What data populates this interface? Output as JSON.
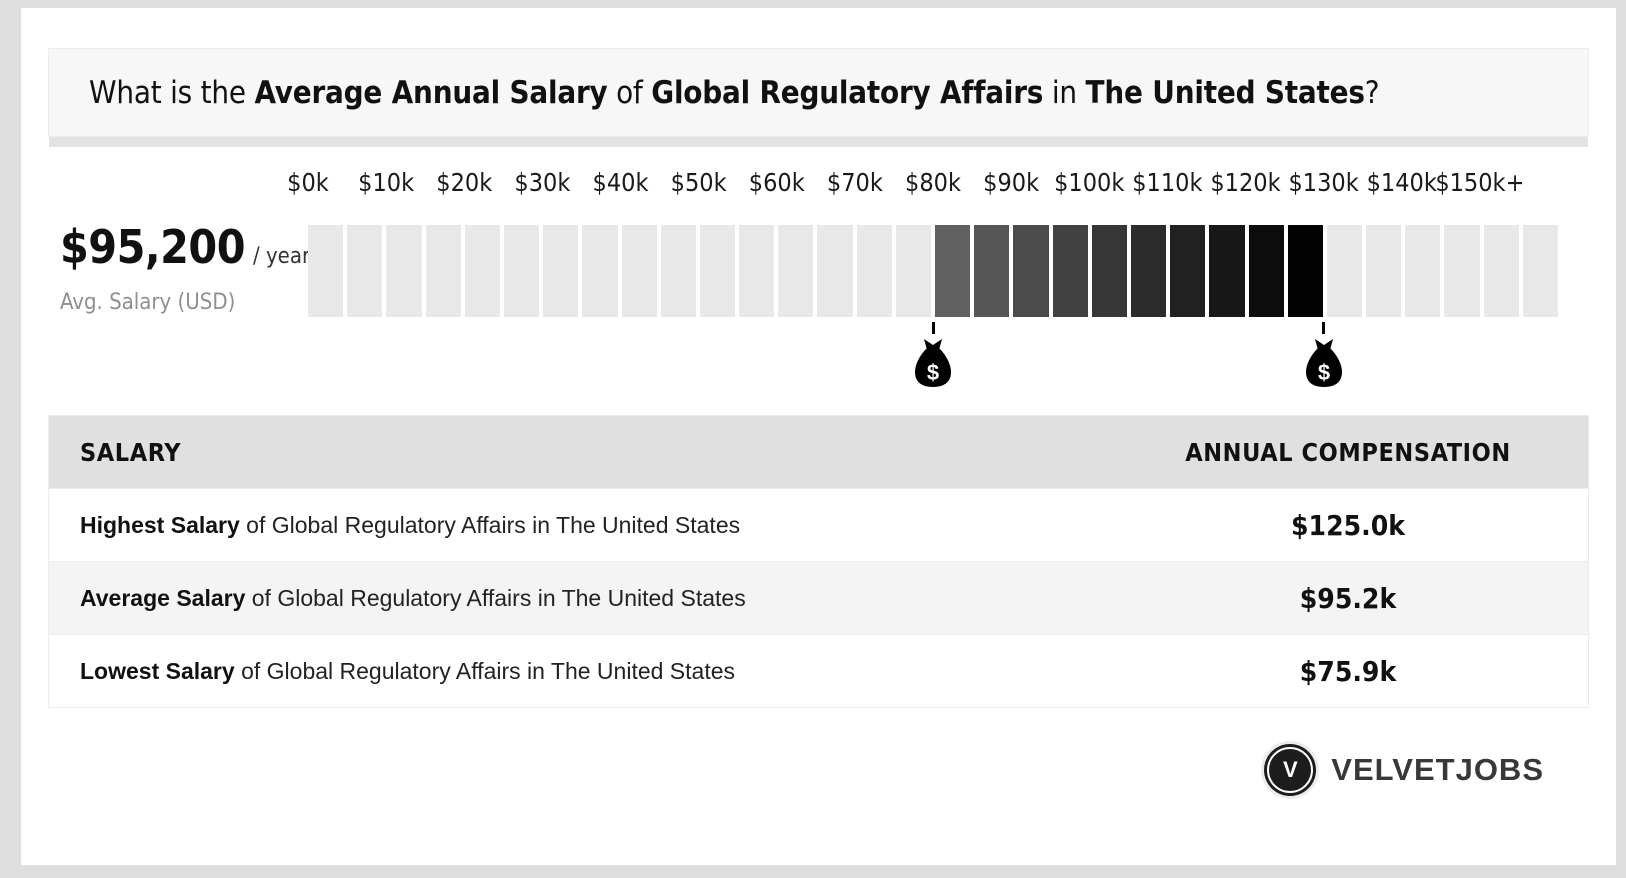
{
  "title": {
    "parts": [
      {
        "text": "What is the ",
        "bold": false
      },
      {
        "text": "Average Annual Salary",
        "bold": true
      },
      {
        "text": " of ",
        "bold": false
      },
      {
        "text": "Global Regulatory Affairs",
        "bold": true
      },
      {
        "text": " in ",
        "bold": false
      },
      {
        "text": "The United States",
        "bold": true
      },
      {
        "text": "?",
        "bold": false
      }
    ]
  },
  "summary": {
    "amount": "$95,200",
    "per": "/ year",
    "label": "Avg. Salary (USD)"
  },
  "chart_data": {
    "type": "bar",
    "title": "Average Annual Salary of Global Regulatory Affairs in The United States",
    "axis_ticks": [
      {
        "label": "$0k",
        "value_k": 0
      },
      {
        "label": "$10k",
        "value_k": 10
      },
      {
        "label": "$20k",
        "value_k": 20
      },
      {
        "label": "$30k",
        "value_k": 30
      },
      {
        "label": "$40k",
        "value_k": 40
      },
      {
        "label": "$50k",
        "value_k": 50
      },
      {
        "label": "$60k",
        "value_k": 60
      },
      {
        "label": "$70k",
        "value_k": 70
      },
      {
        "label": "$80k",
        "value_k": 80
      },
      {
        "label": "$90k",
        "value_k": 90
      },
      {
        "label": "$100k",
        "value_k": 100
      },
      {
        "label": "$110k",
        "value_k": 110
      },
      {
        "label": "$120k",
        "value_k": 120
      },
      {
        "label": "$130k",
        "value_k": 130
      },
      {
        "label": "$140k",
        "value_k": 140
      },
      {
        "label": "$150k+",
        "value_k": 150
      }
    ],
    "axis_range_k": [
      0,
      160
    ],
    "segment_step_k": 5,
    "lowest_k": 75.9,
    "average_k": 95.2,
    "highest_k": 125.0,
    "marker_icon": "money-bag-icon",
    "marker_symbol": "$",
    "colors": {
      "base_segment": "#e8e8e8",
      "highlight_from": "#606060",
      "highlight_to": "#020202"
    }
  },
  "table": {
    "headers": {
      "salary": "SALARY",
      "compensation": "ANNUAL COMPENSATION"
    },
    "rows": [
      {
        "bold": "Highest Salary",
        "rest": " of Global Regulatory Affairs in The United States",
        "value": "$125.0k"
      },
      {
        "bold": "Average Salary",
        "rest": " of Global Regulatory Affairs in The United States",
        "value": "$95.2k"
      },
      {
        "bold": "Lowest Salary",
        "rest": " of Global Regulatory Affairs in The United States",
        "value": "$75.9k"
      }
    ]
  },
  "logo": {
    "monogram": "V",
    "brand": "VELVETJOBS"
  },
  "colors": {
    "frame": "#dedede",
    "title_box_bg": "#f7f7f7",
    "table_header_bg": "#e0e0e0",
    "alt_row_bg": "#f4f4f4",
    "text": "#111111",
    "muted": "#8f8f8f",
    "logo_text": "#383838"
  }
}
